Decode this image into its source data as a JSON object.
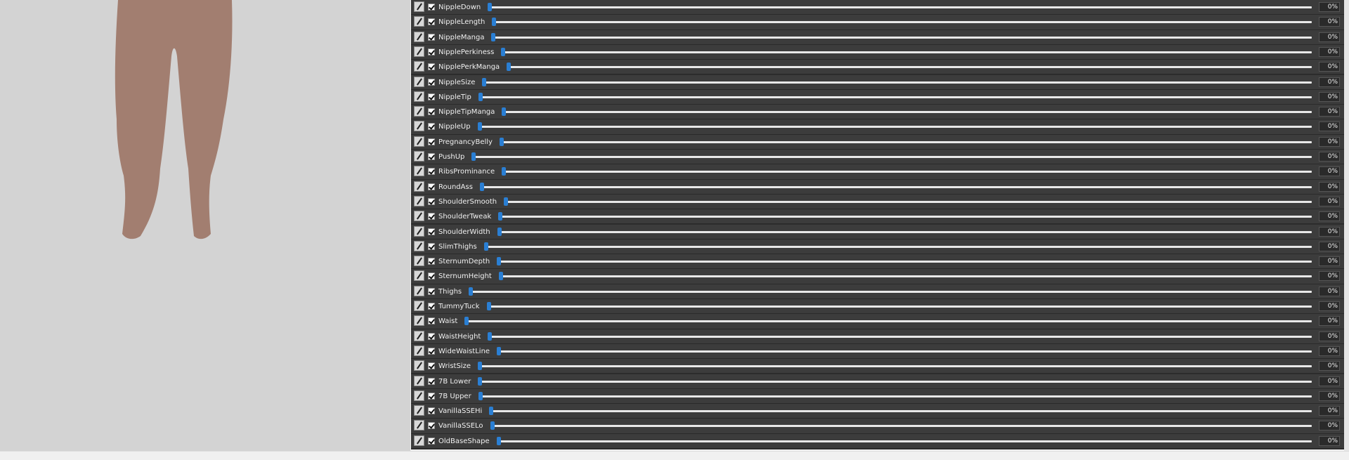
{
  "sliders": [
    {
      "name": "NippleDown",
      "value": "0%"
    },
    {
      "name": "NippleLength",
      "value": "0%"
    },
    {
      "name": "NippleManga",
      "value": "0%"
    },
    {
      "name": "NipplePerkiness",
      "value": "0%"
    },
    {
      "name": "NipplePerkManga",
      "value": "0%"
    },
    {
      "name": "NippleSize",
      "value": "0%"
    },
    {
      "name": "NippleTip",
      "value": "0%"
    },
    {
      "name": "NippleTipManga",
      "value": "0%"
    },
    {
      "name": "NippleUp",
      "value": "0%"
    },
    {
      "name": "PregnancyBelly",
      "value": "0%"
    },
    {
      "name": "PushUp",
      "value": "0%"
    },
    {
      "name": "RibsProminance",
      "value": "0%"
    },
    {
      "name": "RoundAss",
      "value": "0%"
    },
    {
      "name": "ShoulderSmooth",
      "value": "0%"
    },
    {
      "name": "ShoulderTweak",
      "value": "0%"
    },
    {
      "name": "ShoulderWidth",
      "value": "0%"
    },
    {
      "name": "SlimThighs",
      "value": "0%"
    },
    {
      "name": "SternumDepth",
      "value": "0%"
    },
    {
      "name": "SternumHeight",
      "value": "0%"
    },
    {
      "name": "Thighs",
      "value": "0%"
    },
    {
      "name": "TummyTuck",
      "value": "0%"
    },
    {
      "name": "Waist",
      "value": "0%"
    },
    {
      "name": "WaistHeight",
      "value": "0%"
    },
    {
      "name": "WideWaistLine",
      "value": "0%"
    },
    {
      "name": "WristSize",
      "value": "0%"
    },
    {
      "name": "7B Lower",
      "value": "0%"
    },
    {
      "name": "7B Upper",
      "value": "0%"
    },
    {
      "name": "VanillaSSEHi",
      "value": "0%"
    },
    {
      "name": "VanillaSSELo",
      "value": "0%"
    },
    {
      "name": "OldBaseShape",
      "value": "0%"
    }
  ]
}
